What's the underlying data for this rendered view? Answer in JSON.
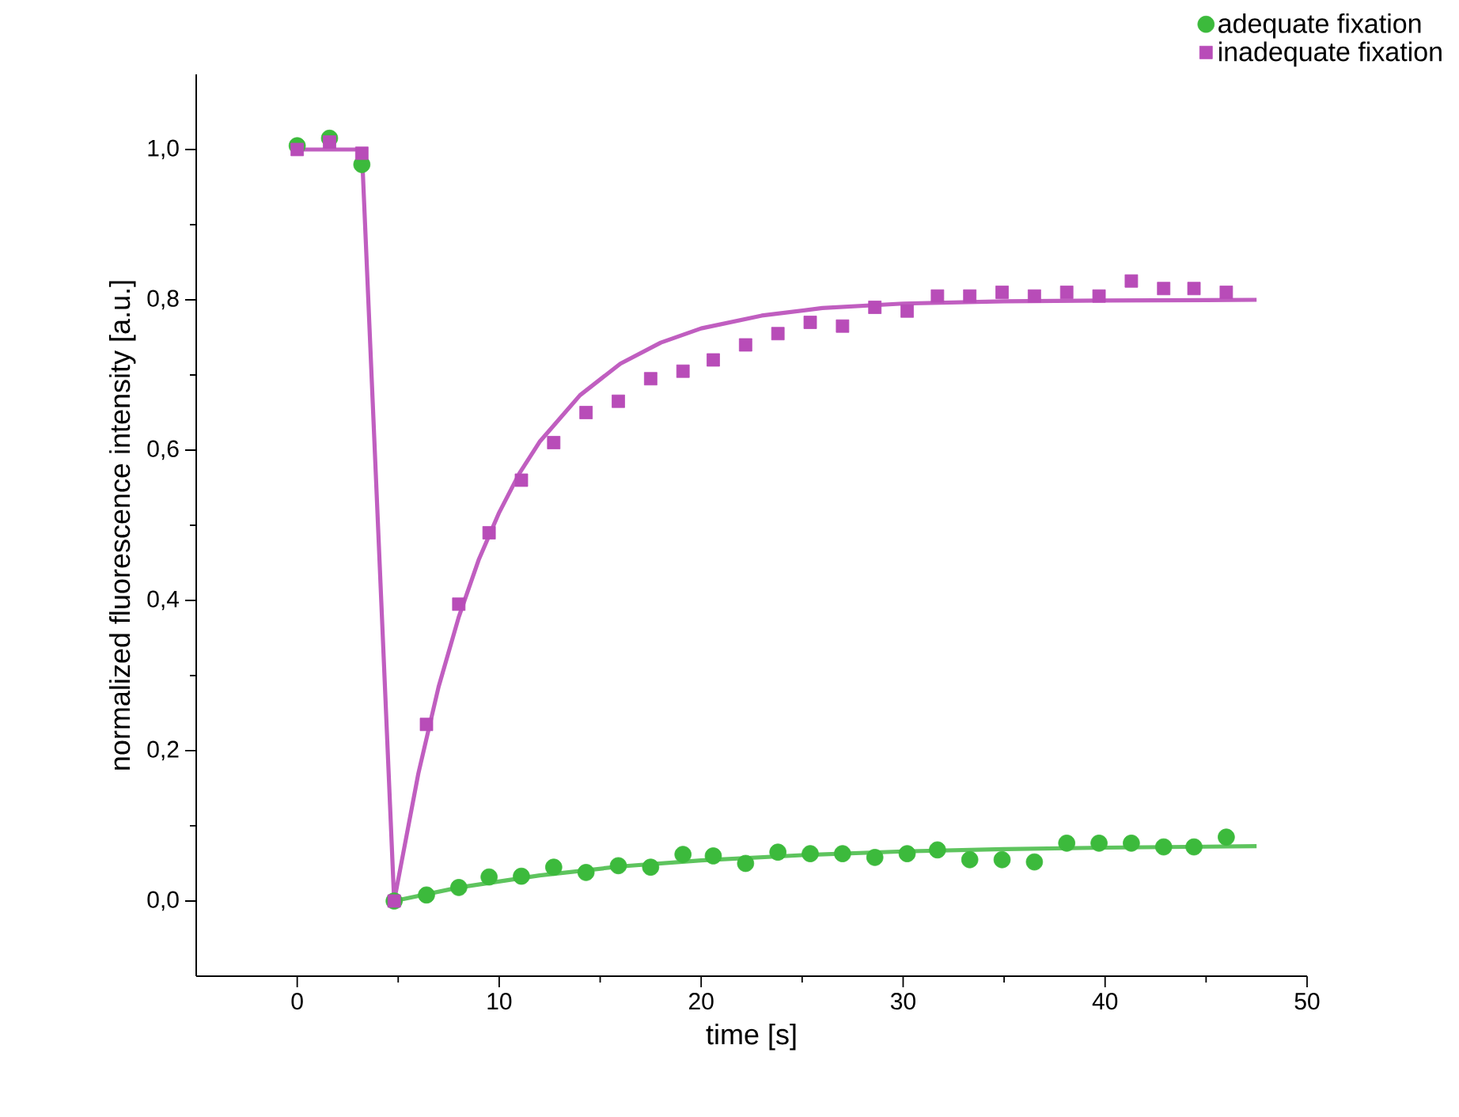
{
  "chart_data": {
    "type": "scatter",
    "xlabel": "time [s]",
    "ylabel": "normalized fluorescence intensity [a.u.]",
    "xlim": [
      -5,
      50
    ],
    "ylim": [
      -0.1,
      1.1
    ],
    "xticks": [
      0,
      10,
      20,
      30,
      40,
      50
    ],
    "yticks": [
      {
        "value": 0,
        "label": "0,0"
      },
      {
        "value": 0.2,
        "label": "0,2"
      },
      {
        "value": 0.4,
        "label": "0,4"
      },
      {
        "value": 0.6,
        "label": "0,6"
      },
      {
        "value": 0.8,
        "label": "0,8"
      },
      {
        "value": 1.0,
        "label": "1,0"
      }
    ],
    "grid": false,
    "legend": "top right",
    "series": [
      {
        "name": "adequate fixation",
        "marker": "circle",
        "color": "#3cba3c",
        "x": [
          0,
          1.6,
          3.2,
          4.8,
          6.4,
          8.0,
          9.5,
          11.1,
          12.7,
          14.3,
          15.9,
          17.5,
          19.1,
          20.6,
          22.2,
          23.8,
          25.4,
          27.0,
          28.6,
          30.2,
          31.7,
          33.3,
          34.9,
          36.5,
          38.1,
          39.7,
          41.3,
          42.9,
          44.4,
          46.0
        ],
        "values": [
          1.005,
          1.015,
          0.98,
          0.0,
          0.008,
          0.018,
          0.032,
          0.033,
          0.045,
          0.038,
          0.047,
          0.045,
          0.062,
          0.06,
          0.05,
          0.065,
          0.063,
          0.063,
          0.058,
          0.063,
          0.068,
          0.055,
          0.055,
          0.052,
          0.077,
          0.077,
          0.077,
          0.072,
          0.072,
          0.085
        ]
      },
      {
        "name": "inadequate fixation",
        "marker": "square",
        "color": "#b84cb8",
        "x": [
          0,
          1.6,
          3.2,
          4.8,
          6.4,
          8.0,
          9.5,
          11.1,
          12.7,
          14.3,
          15.9,
          17.5,
          19.1,
          20.6,
          22.2,
          23.8,
          25.4,
          27.0,
          28.6,
          30.2,
          31.7,
          33.3,
          34.9,
          36.5,
          38.1,
          39.7,
          41.3,
          42.9,
          44.4,
          46.0
        ],
        "values": [
          1.0,
          1.01,
          0.995,
          0.0,
          0.235,
          0.395,
          0.49,
          0.56,
          0.61,
          0.65,
          0.665,
          0.695,
          0.705,
          0.72,
          0.74,
          0.755,
          0.77,
          0.765,
          0.79,
          0.785,
          0.805,
          0.805,
          0.81,
          0.805,
          0.81,
          0.805,
          0.825,
          0.815,
          0.815,
          0.81
        ]
      },
      {
        "type": "line",
        "marker": "none",
        "line_style": "solid",
        "color": "#5ec45e",
        "x": [
          4.8,
          8,
          12,
          16,
          20,
          25,
          30,
          35,
          40,
          47.5
        ],
        "values": [
          0.0,
          0.018,
          0.034,
          0.046,
          0.054,
          0.061,
          0.066,
          0.069,
          0.071,
          0.073
        ]
      },
      {
        "type": "line",
        "marker": "none",
        "line_style": "solid",
        "color": "#c05ec0",
        "x": [
          0,
          3.2,
          4.8,
          6,
          7,
          8,
          9,
          10,
          11,
          12,
          14,
          16,
          18,
          20,
          23,
          26,
          30,
          35,
          40,
          47.5
        ],
        "values": [
          1.0,
          1.0,
          0.0,
          0.17,
          0.285,
          0.378,
          0.455,
          0.517,
          0.569,
          0.611,
          0.673,
          0.715,
          0.743,
          0.762,
          0.779,
          0.789,
          0.795,
          0.798,
          0.799,
          0.8
        ]
      }
    ]
  }
}
